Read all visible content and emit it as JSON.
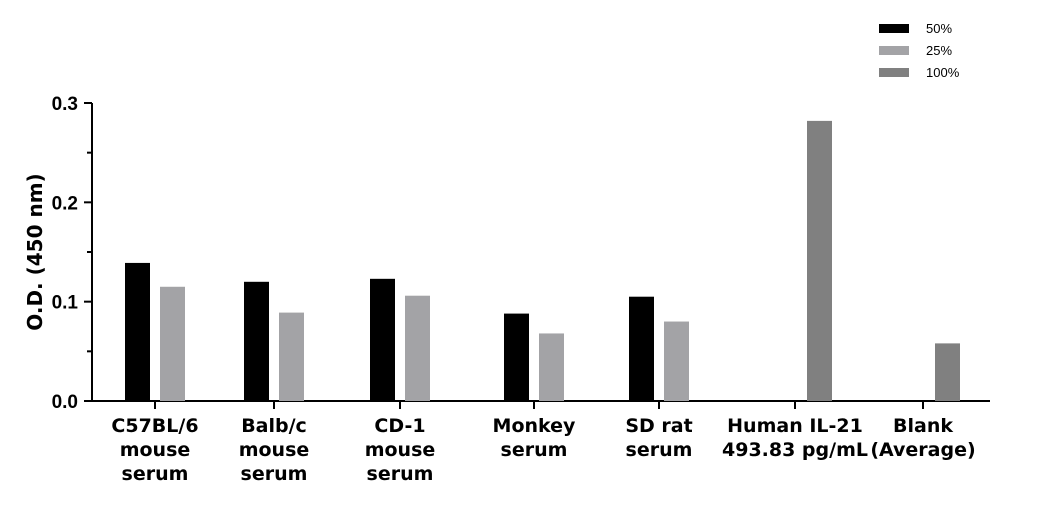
{
  "chart_data": {
    "type": "bar",
    "title": "",
    "xlabel": "",
    "ylabel": "O.D. (450 nm)",
    "ylim": [
      0,
      0.3
    ],
    "yticks": [
      "0.0",
      "0.1",
      "0.2",
      "0.3"
    ],
    "categories": [
      [
        "C57BL/6",
        "mouse",
        "serum"
      ],
      [
        "Balb/c",
        "mouse",
        "serum"
      ],
      [
        "CD-1",
        "mouse",
        "serum"
      ],
      [
        "Monkey",
        "serum"
      ],
      [
        "SD rat",
        "serum"
      ],
      [
        "Human IL-21",
        "493.83 pg/mL"
      ],
      [
        "Blank",
        "(Average)"
      ]
    ],
    "series": [
      {
        "name": "50%",
        "color": "#000000",
        "values": [
          0.139,
          0.12,
          0.123,
          0.088,
          0.105,
          null,
          null
        ]
      },
      {
        "name": "25%",
        "color": "#a3a3a6",
        "values": [
          0.115,
          0.089,
          0.106,
          0.068,
          0.08,
          null,
          null
        ]
      },
      {
        "name": "100%",
        "color": "#808080",
        "values": [
          null,
          null,
          null,
          null,
          null,
          0.282,
          0.058
        ]
      }
    ],
    "legend_position": "top-right",
    "grid": false
  }
}
